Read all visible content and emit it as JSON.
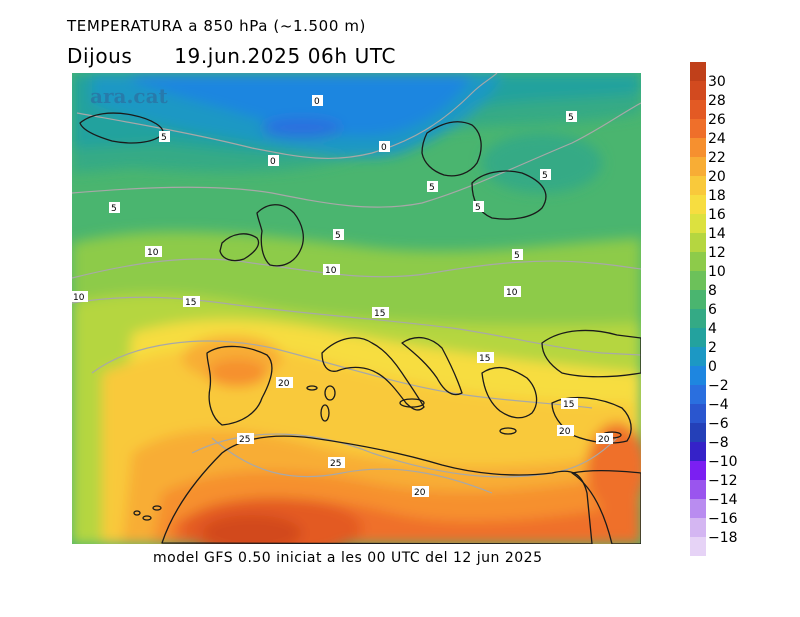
{
  "header": {
    "title": "TEMPERATURA a 850 hPa (~1.500 m)",
    "day": "Dijous",
    "datetime": "19.jun.2025 06h UTC"
  },
  "watermark": "ara.cat",
  "footer": "model GFS 0.50 iniciat a les 00 UTC del 12 jun 2025",
  "legend": {
    "levels": [
      {
        "label": "30",
        "color": "#c0401a"
      },
      {
        "label": "28",
        "color": "#d24a1f"
      },
      {
        "label": "26",
        "color": "#e35a24"
      },
      {
        "label": "24",
        "color": "#ef6f2a"
      },
      {
        "label": "22",
        "color": "#f6902f"
      },
      {
        "label": "20",
        "color": "#f8ad35"
      },
      {
        "label": "18",
        "color": "#f9c93b"
      },
      {
        "label": "16",
        "color": "#f7dd40"
      },
      {
        "label": "14",
        "color": "#dce13f"
      },
      {
        "label": "12",
        "color": "#b5d640"
      },
      {
        "label": "10",
        "color": "#8dcb4a"
      },
      {
        "label": "8",
        "color": "#6cc15a"
      },
      {
        "label": "6",
        "color": "#4ab56f"
      },
      {
        "label": "4",
        "color": "#34aa85"
      },
      {
        "label": "2",
        "color": "#23a29e"
      },
      {
        "label": "0",
        "color": "#1c98c4"
      },
      {
        "label": "−2",
        "color": "#1e86e0"
      },
      {
        "label": "−4",
        "color": "#2a6fdf"
      },
      {
        "label": "−6",
        "color": "#2a56cf"
      },
      {
        "label": "−8",
        "color": "#2440b8"
      },
      {
        "label": "−10",
        "color": "#3522c8"
      },
      {
        "label": "−12",
        "color": "#7b1ff2"
      },
      {
        "label": "−14",
        "color": "#9a55ee"
      },
      {
        "label": "−16",
        "color": "#b98cf0"
      },
      {
        "label": "−18",
        "color": "#d4b6f2"
      },
      {
        "label": "",
        "color": "#e6d3f6"
      }
    ]
  },
  "isotherm_labels": [
    {
      "text": "0"
    },
    {
      "text": "0"
    },
    {
      "text": "0"
    },
    {
      "text": "5"
    },
    {
      "text": "5"
    },
    {
      "text": "5"
    },
    {
      "text": "5"
    },
    {
      "text": "5"
    },
    {
      "text": "5"
    },
    {
      "text": "5"
    },
    {
      "text": "5"
    },
    {
      "text": "10"
    },
    {
      "text": "10"
    },
    {
      "text": "10"
    },
    {
      "text": "10"
    },
    {
      "text": "15"
    },
    {
      "text": "15"
    },
    {
      "text": "15"
    },
    {
      "text": "15"
    },
    {
      "text": "20"
    },
    {
      "text": "20"
    },
    {
      "text": "20"
    },
    {
      "text": "20"
    },
    {
      "text": "25"
    },
    {
      "text": "25"
    }
  ]
}
